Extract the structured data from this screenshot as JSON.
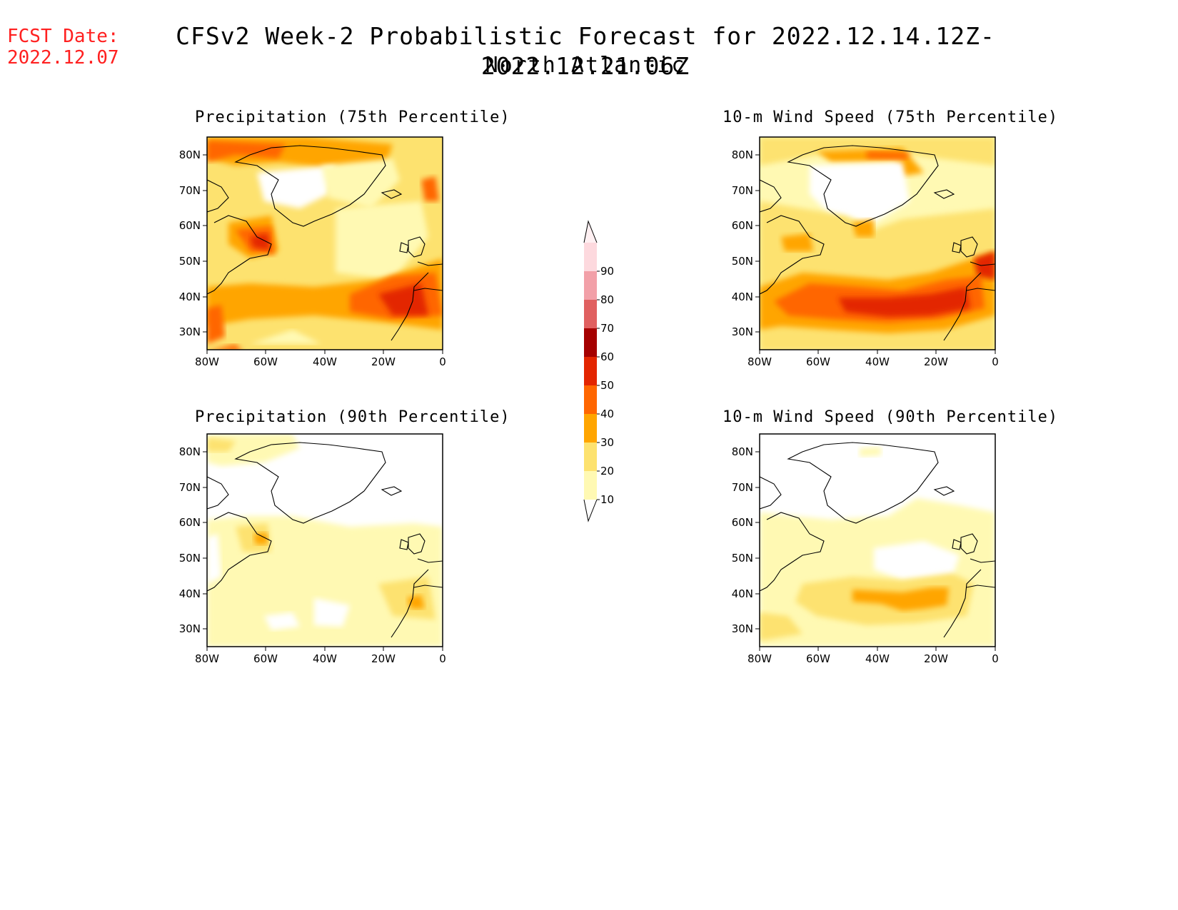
{
  "header": {
    "fcst_label": "FCST Date:",
    "fcst_date": "2022.12.07",
    "title": "CFSv2 Week-2 Probabilistic Forecast for 2022.12.14.12Z-2022.12.21.06Z",
    "region": "North Atlantic"
  },
  "axes": {
    "lat_labels": [
      "80N",
      "70N",
      "60N",
      "50N",
      "40N",
      "30N"
    ],
    "lon_labels": [
      "80W",
      "60W",
      "40W",
      "20W",
      "0"
    ]
  },
  "colorbar": {
    "levels": [
      10,
      20,
      30,
      40,
      50,
      60,
      70,
      80,
      90
    ],
    "colors": [
      "#fff9b3",
      "#fde26f",
      "#ffa500",
      "#ff6600",
      "#e32500",
      "#a50000",
      "#e06060",
      "#f2a0a8",
      "#fdd9de"
    ]
  },
  "panels": [
    {
      "title": "Precipitation (75th Percentile)"
    },
    {
      "title": "10-m Wind Speed (75th Percentile)"
    },
    {
      "title": "Precipitation (90th Percentile)"
    },
    {
      "title": "10-m Wind Speed (90th Percentile)"
    }
  ]
}
